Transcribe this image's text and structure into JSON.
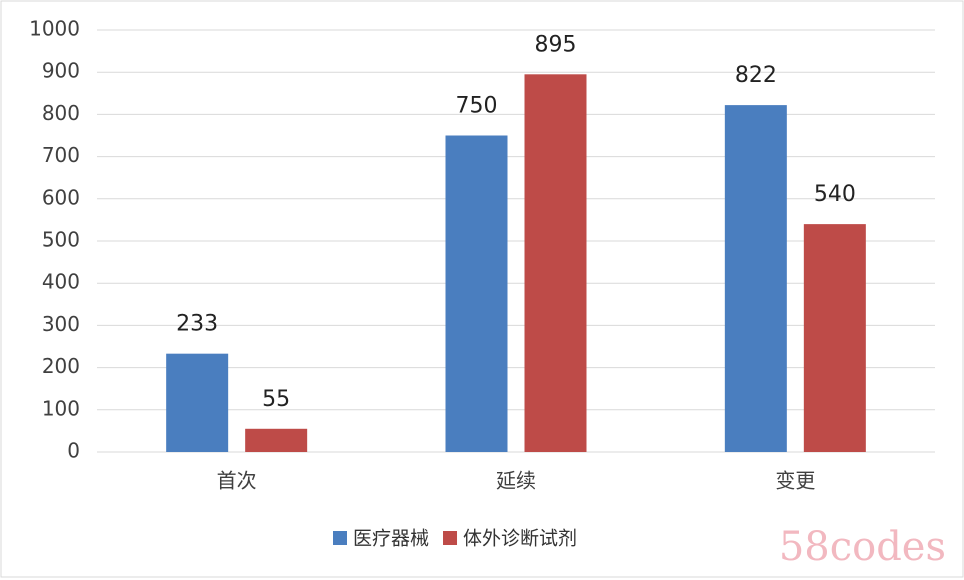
{
  "chart_data": {
    "type": "bar",
    "categories": [
      "首次",
      "延续",
      "变更"
    ],
    "series": [
      {
        "name": "医疗器械",
        "color": "#4a7ebf",
        "values": [
          233,
          750,
          822
        ]
      },
      {
        "name": "体外诊断试剂",
        "color": "#be4b48",
        "values": [
          55,
          895,
          540
        ]
      }
    ],
    "ylim": [
      0,
      1000
    ],
    "yticks": [
      0,
      100,
      200,
      300,
      400,
      500,
      600,
      700,
      800,
      900,
      1000
    ],
    "grid": true,
    "legend": "bottom",
    "watermark": "58codes"
  }
}
